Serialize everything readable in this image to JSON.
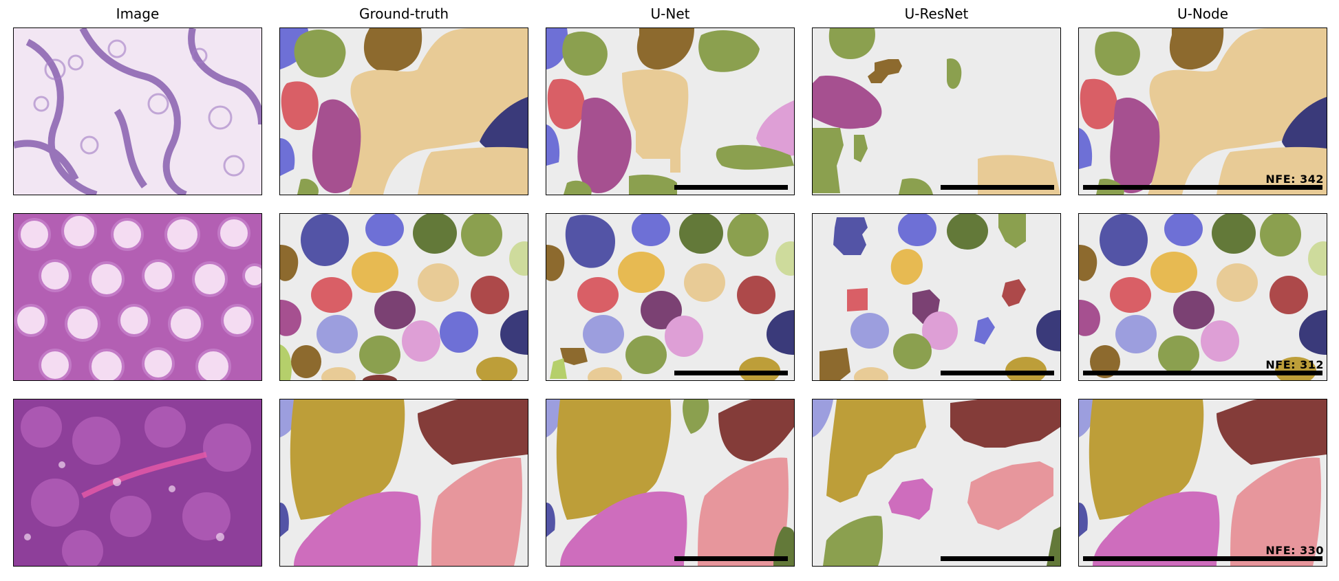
{
  "columns": [
    "Image",
    "Ground-truth",
    "U-Net",
    "U-ResNet",
    "U-Node"
  ],
  "nfe": [
    "NFE: 342",
    "NFE: 312",
    "NFE: 330"
  ],
  "colors": {
    "background": "#ececec",
    "tan": "#e8cb96",
    "olive": "#8ba04f",
    "brown": "#8d6a2e",
    "red": "#d95f66",
    "purple": "#a65090",
    "blue": "#6e70d6",
    "navy": "#3a3a7a",
    "pink": "#de9fd6",
    "gold": "#bd9c38",
    "maroon": "#853a38",
    "salmon": "#e8969a",
    "magenta": "#cf6ebf",
    "lavender": "#9f9fe0"
  }
}
